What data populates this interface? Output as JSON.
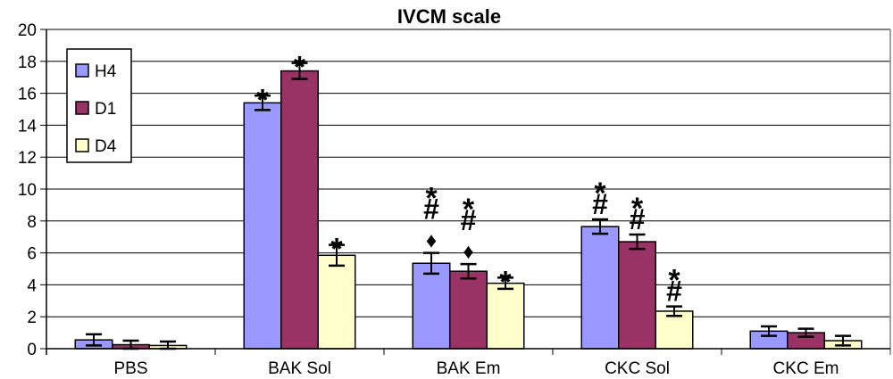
{
  "chart_data": {
    "type": "bar",
    "title": "IVCM scale",
    "xlabel": "",
    "ylabel": "",
    "ylim": [
      0,
      20
    ],
    "yticks": [
      "0",
      "2",
      "4",
      "6",
      "8",
      "10",
      "12",
      "14",
      "16",
      "18",
      "20"
    ],
    "grid": true,
    "legend_position": "top-left",
    "categories": [
      "PBS",
      "BAK Sol",
      "BAK Em",
      "CKC Sol",
      "CKC Em"
    ],
    "series": [
      {
        "name": "H4",
        "color": "#9999ff",
        "values": [
          0.55,
          15.4,
          5.35,
          7.65,
          1.1
        ],
        "errors": [
          0.35,
          0.45,
          0.65,
          0.45,
          0.3
        ],
        "annotations": [
          [],
          [
            "*"
          ],
          [
            "*",
            "#",
            "♦"
          ],
          [
            "*",
            "#"
          ],
          []
        ]
      },
      {
        "name": "D1",
        "color": "#993366",
        "values": [
          0.25,
          17.4,
          4.85,
          6.7,
          1.0
        ],
        "errors": [
          0.25,
          0.5,
          0.45,
          0.45,
          0.25
        ],
        "annotations": [
          [],
          [
            "*"
          ],
          [
            "*",
            "#",
            "♦"
          ],
          [
            "*",
            "#"
          ],
          []
        ]
      },
      {
        "name": "D4",
        "color": "#ffffcc",
        "values": [
          0.2,
          5.85,
          4.1,
          2.35,
          0.5
        ],
        "errors": [
          0.25,
          0.65,
          0.35,
          0.3,
          0.3
        ],
        "annotations": [
          [],
          [
            "*"
          ],
          [
            "*"
          ],
          [
            "*",
            "#"
          ],
          []
        ]
      }
    ]
  }
}
